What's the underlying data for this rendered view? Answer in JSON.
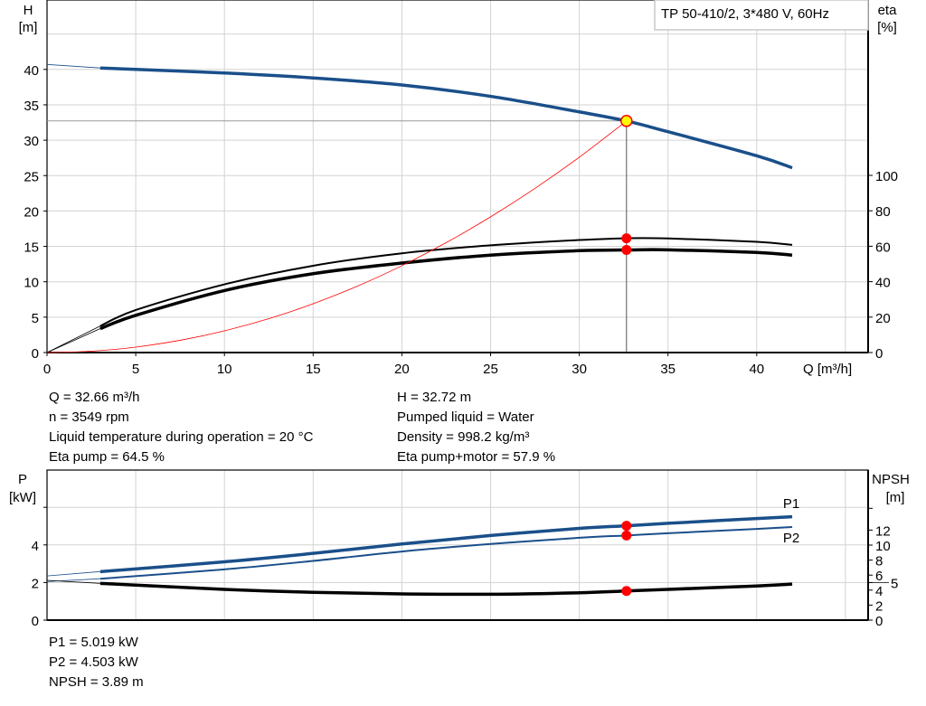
{
  "chart_data": [
    {
      "type": "line",
      "title": "TP 50-410/2, 3*480 V, 60Hz",
      "xlabel": "Q [m³/h]",
      "ylabel_left": [
        "H",
        "[m]"
      ],
      "ylabel_right": [
        "eta",
        "[%]"
      ],
      "xlim": [
        0,
        46
      ],
      "ylim_left": [
        0,
        45
      ],
      "ylim_right": [
        0,
        100
      ],
      "x_ticks": [
        0,
        5,
        10,
        15,
        20,
        25,
        30,
        35,
        40
      ],
      "y_ticks_left": [
        0,
        5,
        10,
        15,
        20,
        25,
        30,
        35,
        40
      ],
      "y_ticks_right": [
        0,
        20,
        40,
        60,
        80,
        100
      ],
      "grid": true,
      "series": [
        {
          "key": "H",
          "axis": "left",
          "color": "#1a4f8a",
          "x": [
            3,
            5,
            10,
            15,
            20,
            25,
            30,
            32.66,
            35,
            40,
            42
          ],
          "y": [
            40.2,
            40.0,
            39.5,
            38.8,
            37.8,
            36.2,
            34.0,
            32.72,
            31.2,
            27.8,
            26.1
          ],
          "extension": {
            "x": [
              0,
              3
            ],
            "y": [
              40.7,
              40.2
            ]
          }
        },
        {
          "key": "eta_pump",
          "axis": "right",
          "color": "#000000",
          "x": [
            3,
            5,
            10,
            15,
            20,
            25,
            30,
            32.66,
            35,
            40,
            42
          ],
          "y": [
            15,
            24,
            38.5,
            49,
            56,
            60.5,
            63.5,
            64.5,
            64.4,
            62.5,
            60.8
          ],
          "extension": {
            "x": [
              0,
              3
            ],
            "y": [
              0,
              15
            ]
          }
        },
        {
          "key": "eta_total",
          "axis": "right",
          "color": "#000000",
          "x": [
            3,
            5,
            10,
            15,
            20,
            25,
            30,
            32.66,
            35,
            40,
            42
          ],
          "y": [
            13.5,
            21,
            35,
            44.5,
            50.5,
            55,
            57.5,
            57.9,
            58,
            56.5,
            55
          ],
          "extension": {
            "x": [
              0,
              3
            ],
            "y": [
              0,
              13.5
            ]
          }
        },
        {
          "key": "system",
          "axis": "left",
          "color": "#ff0000",
          "x": [
            0,
            2.5,
            5,
            7.5,
            10,
            12.5,
            15,
            17.5,
            20,
            22.5,
            25,
            27.5,
            30,
            32.66
          ],
          "y": [
            0,
            0.19,
            0.77,
            1.73,
            3.07,
            4.79,
            6.9,
            9.39,
            12.27,
            15.53,
            19.17,
            23.19,
            27.6,
            32.72
          ]
        }
      ],
      "duty_point": {
        "x": 32.66,
        "H": 32.72,
        "eta_pump": 64.5,
        "eta_total": 57.9
      }
    },
    {
      "type": "line",
      "ylabel_left": [
        "P",
        "[kW]"
      ],
      "ylabel_right": [
        "NPSH",
        "[m]"
      ],
      "xlim": [
        0,
        46
      ],
      "ylim_left": [
        0,
        8
      ],
      "ylim_right": [
        0,
        16
      ],
      "y_ticks_left": [
        0,
        2,
        4,
        6
      ],
      "y_ticks_left_labels": [
        "0",
        "2",
        "4",
        ""
      ],
      "y_ticks_right": [
        0,
        2,
        4,
        5,
        6,
        8,
        10,
        12,
        14.9
      ],
      "y_ticks_right_labels": [
        "0",
        "2",
        "4",
        "5",
        "6",
        "8",
        "10",
        "12",
        ""
      ],
      "grid": true,
      "series": [
        {
          "key": "P1",
          "name": "P1",
          "axis": "left",
          "color": "#1a4f8a",
          "x": [
            3,
            10,
            15,
            20,
            25,
            30,
            32.66,
            35,
            40,
            42
          ],
          "y": [
            2.58,
            3.1,
            3.55,
            4.05,
            4.5,
            4.88,
            5.019,
            5.15,
            5.4,
            5.5
          ],
          "extension": {
            "x": [
              0,
              3
            ],
            "y": [
              2.35,
              2.58
            ]
          }
        },
        {
          "key": "P2",
          "name": "P2",
          "axis": "left",
          "color": "#1a4f8a",
          "x": [
            3,
            10,
            15,
            20,
            25,
            30,
            32.66,
            35,
            40,
            42
          ],
          "y": [
            2.2,
            2.7,
            3.15,
            3.65,
            4.05,
            4.38,
            4.503,
            4.62,
            4.85,
            4.95
          ],
          "extension": {
            "x": [
              0,
              3
            ],
            "y": [
              2.05,
              2.2
            ]
          }
        },
        {
          "key": "NPSH",
          "axis": "right",
          "color": "#000000",
          "x": [
            3,
            10,
            15,
            20,
            25,
            30,
            32.66,
            35,
            40,
            42
          ],
          "y": [
            4.9,
            4.1,
            3.7,
            3.5,
            3.45,
            3.65,
            3.89,
            4.1,
            4.55,
            4.8
          ],
          "extension": {
            "x": [
              0,
              3
            ],
            "y": [
              5.3,
              4.9
            ]
          }
        }
      ],
      "duty_point": {
        "x": 32.66,
        "P1": 5.019,
        "P2": 4.503,
        "NPSH": 3.89
      }
    }
  ],
  "info_upper_left": [
    "Q = 32.66 m³/h",
    "n = 3549 rpm",
    "Liquid temperature during operation = 20 °C",
    "Eta pump = 64.5 %"
  ],
  "info_upper_right": [
    "H = 32.72 m",
    "Pumped liquid = Water",
    "Density = 998.2 kg/m³",
    "Eta pump+motor = 57.9 %"
  ],
  "info_lower": [
    "P1 = 5.019 kW",
    "P2 = 4.503 kW",
    "NPSH = 3.89 m"
  ],
  "colors": {
    "grid": "#d3d3d3",
    "head": "#1a4f8a",
    "system": "#ff0000",
    "marker": "#ff0000",
    "duty_marker": "#ffff00"
  }
}
